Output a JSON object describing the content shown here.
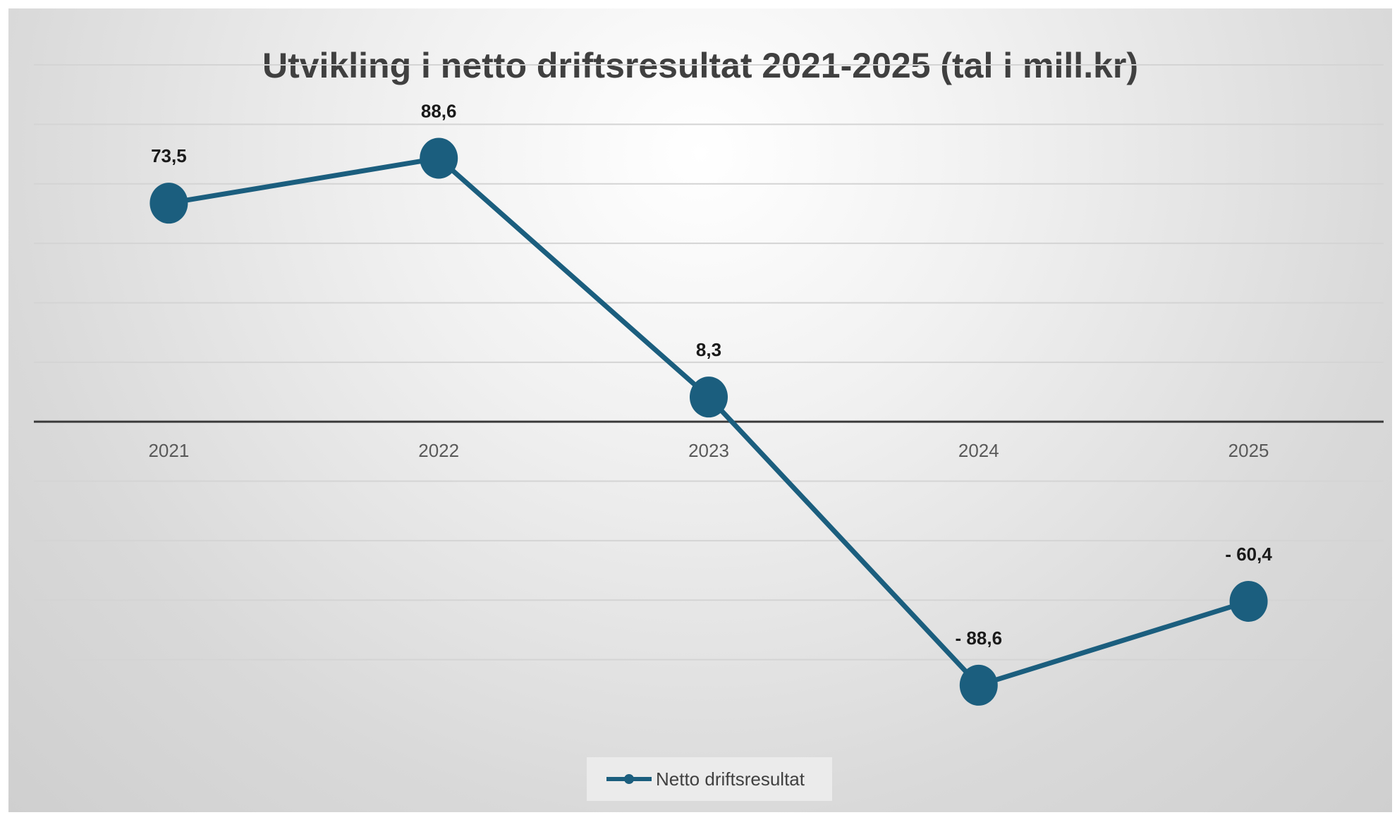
{
  "chart_data": {
    "type": "line",
    "title": "Utvikling i netto driftsresultat 2021-2025 (tal i mill.kr)",
    "categories": [
      "2021",
      "2022",
      "2023",
      "2024",
      "2025"
    ],
    "series": [
      {
        "name": "Netto driftsresultat",
        "values": [
          73.5,
          88.6,
          8.3,
          -88.6,
          -60.4
        ],
        "labels": [
          "73,5",
          "88,6",
          "8,3",
          "- 88,6",
          "- 60,4"
        ]
      }
    ],
    "ylim": [
      -100,
      120
    ],
    "gridline_step": 20,
    "y_tick_labels_visible": false,
    "grid": true,
    "legend": "bottom",
    "colors": {
      "series": "#1b5e7e",
      "zero_line": "#3a3a3a",
      "grid": "#d4d4d4"
    }
  }
}
